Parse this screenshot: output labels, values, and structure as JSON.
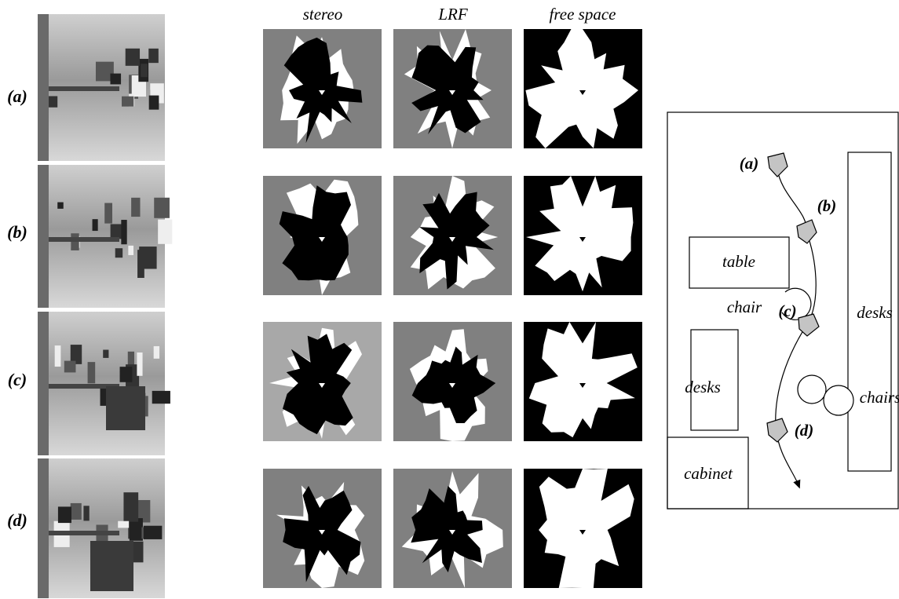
{
  "columns": [
    "stereo",
    "LRF",
    "free space"
  ],
  "rows": [
    "(a)",
    "(b)",
    "(c)",
    "(d)"
  ],
  "diagram": {
    "positions": [
      "(a)",
      "(b)",
      "(c)",
      "(d)"
    ],
    "objects": [
      "table",
      "chair",
      "desks",
      "desks",
      "chairs",
      "cabinet"
    ]
  }
}
